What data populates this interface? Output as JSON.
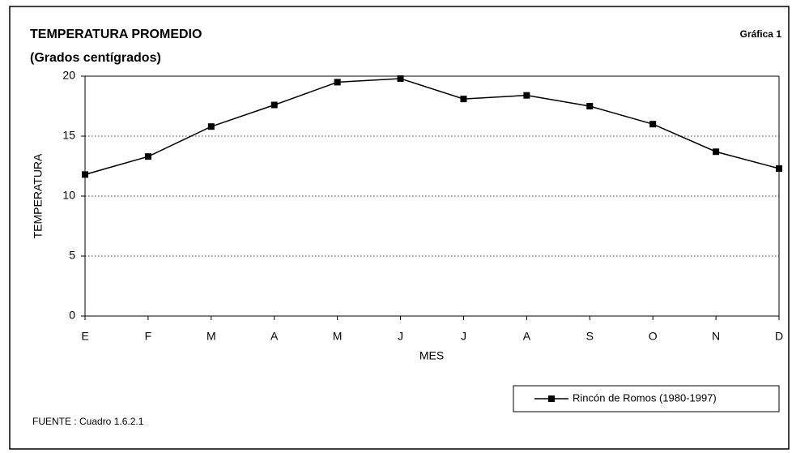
{
  "chart_data": {
    "type": "line",
    "title": "TEMPERATURA PROMEDIO",
    "subtitle": "(Grados centígrados)",
    "figure_label": "Gráfica 1",
    "x_label": "MES",
    "y_label": "TEMPERATURA",
    "source": "FUENTE : Cuadro 1.6.2.1",
    "categories": [
      "E",
      "F",
      "M",
      "A",
      "M",
      "J",
      "J",
      "A",
      "S",
      "O",
      "N",
      "D"
    ],
    "series": [
      {
        "name": "Rincón de Romos (1980-1997)",
        "color": "#000000",
        "values": [
          11.8,
          13.3,
          15.8,
          17.6,
          19.5,
          19.8,
          18.1,
          18.4,
          17.5,
          16.0,
          13.7,
          12.3
        ]
      }
    ],
    "ylim": [
      0,
      20
    ],
    "yticks": [
      0,
      5,
      10,
      15,
      20
    ],
    "grid": true,
    "legend": "bottom-right"
  }
}
